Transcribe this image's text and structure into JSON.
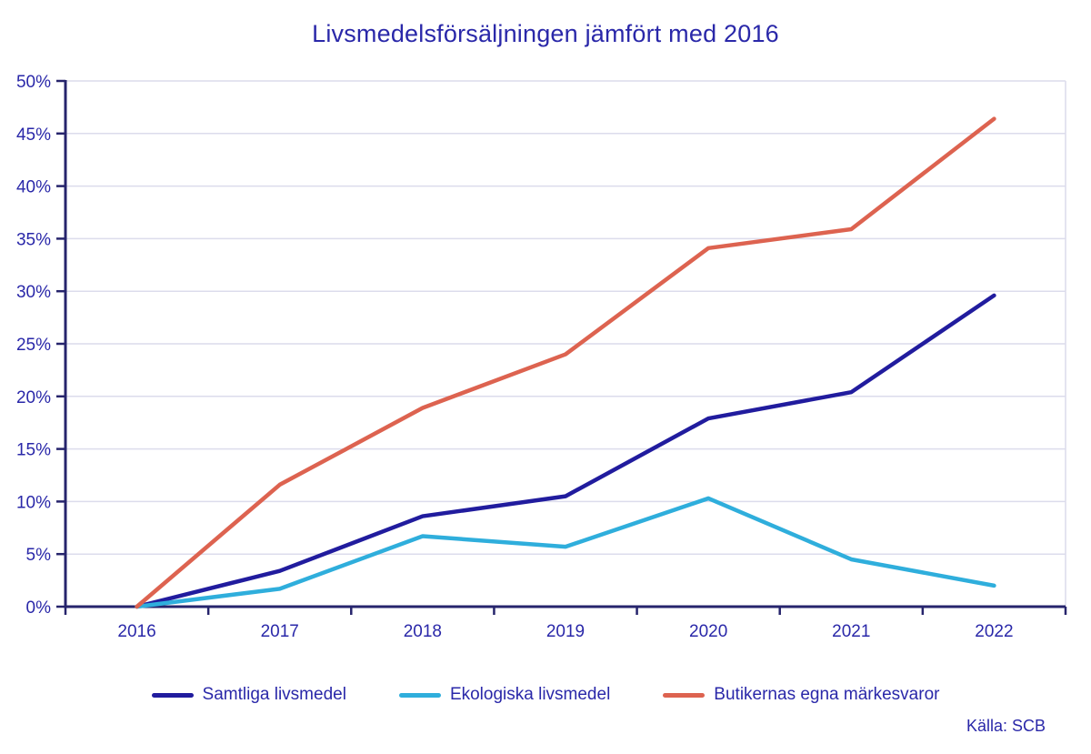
{
  "title": "Livsmedelsförsäljningen jämfört med 2016",
  "source": "Källa: SCB",
  "colors": {
    "text": "#2A28A9",
    "axis": "#26246C",
    "grid": "#DCDCEC",
    "background": "#FFFFFF"
  },
  "chart_data": {
    "type": "line",
    "title": "Livsmedelsförsäljningen jämfört med 2016",
    "categories": [
      "2016",
      "2017",
      "2018",
      "2019",
      "2020",
      "2021",
      "2022"
    ],
    "series": [
      {
        "name": "Samtliga livsmedel",
        "color": "#211C9E",
        "values": [
          0,
          3.4,
          8.6,
          10.5,
          17.9,
          20.4,
          29.6
        ]
      },
      {
        "name": "Ekologiska livsmedel",
        "color": "#2FAEDC",
        "values": [
          0,
          1.7,
          6.7,
          5.7,
          10.3,
          4.5,
          2.0
        ]
      },
      {
        "name": "Butikernas egna märkesvaror",
        "color": "#DD6350",
        "values": [
          0,
          11.6,
          18.9,
          24.0,
          34.1,
          35.9,
          46.4
        ]
      }
    ],
    "xlabel": "",
    "ylabel": "",
    "ylim": [
      0,
      50
    ],
    "ytick_step": 5,
    "ytick_labels": [
      "0%",
      "5%",
      "10%",
      "15%",
      "20%",
      "25%",
      "30%",
      "35%",
      "40%",
      "45%",
      "50%"
    ],
    "grid": true,
    "legend_position": "bottom",
    "source": "Källa: SCB"
  }
}
